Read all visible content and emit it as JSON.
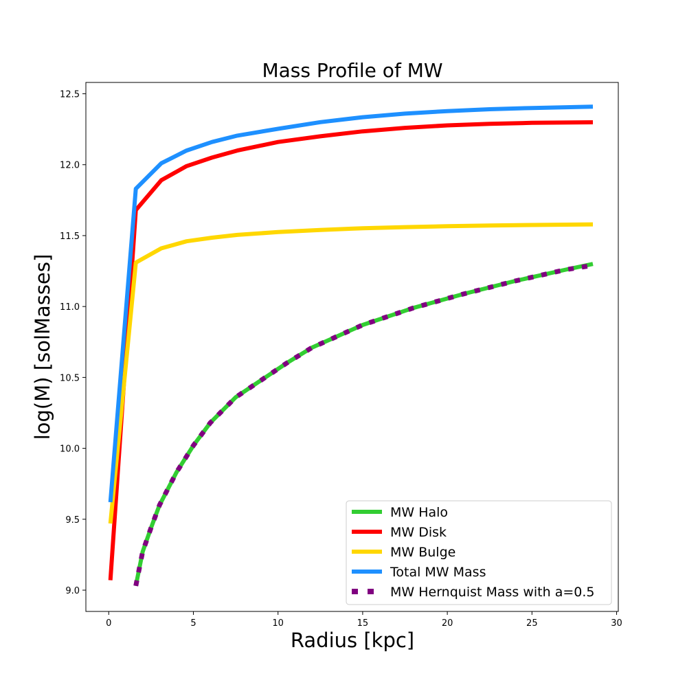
{
  "chart_data": {
    "type": "line",
    "title": "Mass Profile of MW",
    "xlabel": "Radius [kpc]",
    "ylabel": "log(M) [solMasses]",
    "xlim": [
      -1.35,
      30.1
    ],
    "ylim": [
      8.85,
      12.58
    ],
    "xticks": [
      0,
      5,
      10,
      15,
      20,
      25,
      30
    ],
    "xtick_labels": [
      "0",
      "5",
      "10",
      "15",
      "20",
      "25",
      "30"
    ],
    "yticks": [
      9.0,
      9.5,
      10.0,
      10.5,
      11.0,
      11.5,
      12.0,
      12.5
    ],
    "ytick_labels": [
      "9.0",
      "9.5",
      "10.0",
      "10.5",
      "11.0",
      "11.5",
      "12.0",
      "12.5"
    ],
    "grid": false,
    "legend_position": "lower-right",
    "series": [
      {
        "name": "MW Halo",
        "color": "#32cd32",
        "style": "solid",
        "x": [
          1.6,
          2.0,
          2.5,
          3.0,
          4.0,
          5.0,
          6.0,
          7.5,
          9.0,
          10.5,
          12.0,
          15.0,
          18.0,
          21.0,
          24.0,
          27.0,
          28.6
        ],
        "y": [
          9.03,
          9.27,
          9.44,
          9.6,
          9.83,
          10.02,
          10.18,
          10.36,
          10.48,
          10.6,
          10.71,
          10.87,
          10.99,
          11.09,
          11.18,
          11.26,
          11.3
        ]
      },
      {
        "name": "MW Disk",
        "color": "#ff0000",
        "style": "solid",
        "x": [
          0.1,
          1.6,
          3.1,
          4.6,
          6.1,
          7.6,
          10.0,
          12.5,
          15.0,
          17.5,
          20.0,
          22.5,
          25.0,
          28.6
        ],
        "y": [
          9.07,
          11.68,
          11.89,
          11.99,
          12.05,
          12.1,
          12.16,
          12.2,
          12.235,
          12.26,
          12.277,
          12.288,
          12.295,
          12.299
        ]
      },
      {
        "name": "MW Bulge",
        "color": "#ffd700",
        "style": "solid",
        "x": [
          0.1,
          1.6,
          3.1,
          4.6,
          6.1,
          7.6,
          10.0,
          12.5,
          15.0,
          17.5,
          20.0,
          22.5,
          25.0,
          28.6
        ],
        "y": [
          9.47,
          11.31,
          11.41,
          11.46,
          11.485,
          11.505,
          11.525,
          11.54,
          11.552,
          11.56,
          11.566,
          11.571,
          11.575,
          11.579
        ]
      },
      {
        "name": "Total MW Mass",
        "color": "#1e90ff",
        "style": "solid",
        "x": [
          0.1,
          1.6,
          3.1,
          4.6,
          6.1,
          7.6,
          10.0,
          12.5,
          15.0,
          17.5,
          20.0,
          22.5,
          25.0,
          28.6
        ],
        "y": [
          9.62,
          11.83,
          12.01,
          12.1,
          12.16,
          12.205,
          12.253,
          12.3,
          12.335,
          12.36,
          12.378,
          12.391,
          12.4,
          12.409
        ]
      },
      {
        "name": "MW Hernquist Mass with a=0.5",
        "color": "#800080",
        "style": "dotted",
        "x": [
          1.6,
          2.0,
          2.5,
          3.0,
          4.0,
          5.0,
          6.0,
          7.5,
          9.0,
          10.5,
          12.0,
          15.0,
          18.0,
          21.0,
          24.0,
          27.0,
          28.6
        ],
        "y": [
          9.03,
          9.27,
          9.44,
          9.6,
          9.83,
          10.02,
          10.18,
          10.36,
          10.48,
          10.6,
          10.71,
          10.87,
          10.99,
          11.09,
          11.18,
          11.26,
          11.29
        ]
      }
    ]
  }
}
